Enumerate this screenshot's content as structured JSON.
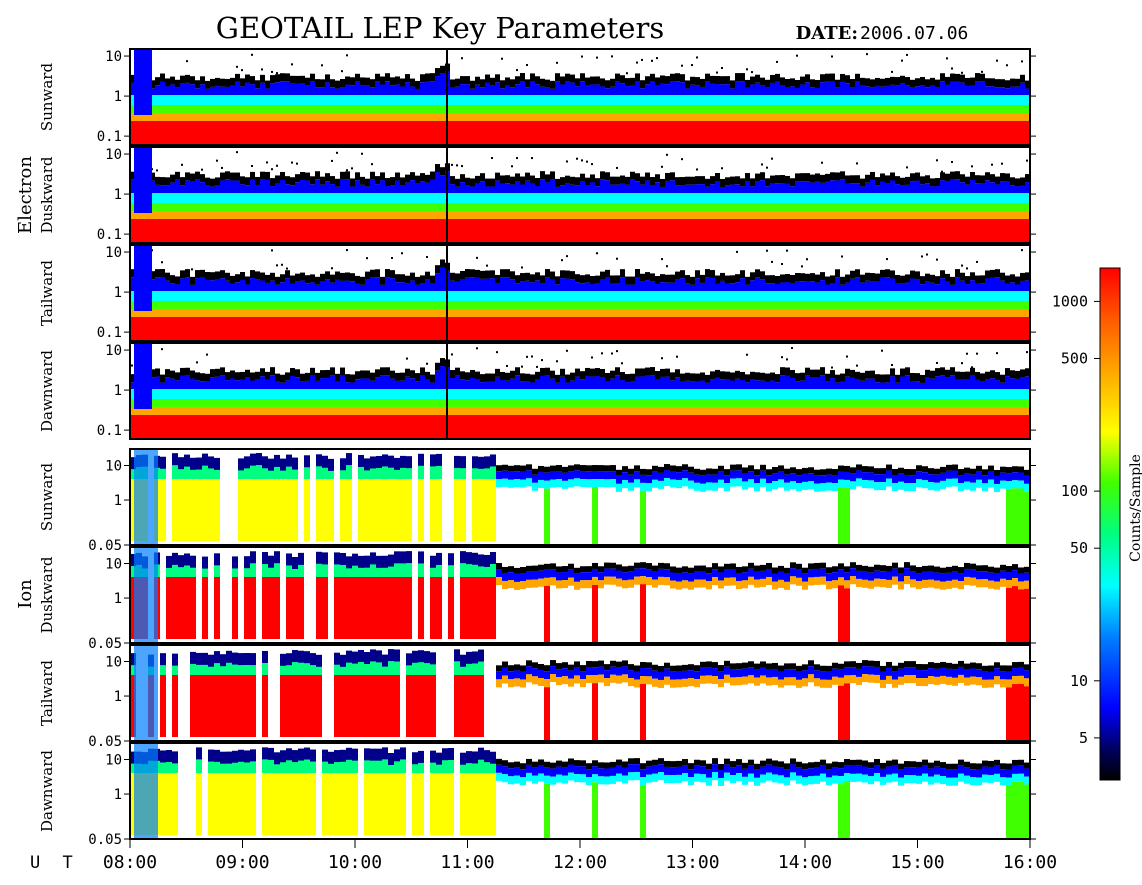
{
  "chart_data": {
    "type": "heatmap",
    "title": "GEOTAIL LEP Key Parameters",
    "date_label": "DATE:",
    "date_value": "2006.07.06",
    "x_axis": {
      "prefix": "U T",
      "range": [
        "08:00",
        "16:00"
      ],
      "tick_labels": [
        "08:00",
        "09:00",
        "10:00",
        "11:00",
        "12:00",
        "13:00",
        "14:00",
        "15:00",
        "16:00"
      ]
    },
    "colorbar": {
      "label": "Counts/Sample",
      "scale": "log",
      "range": [
        3,
        1500
      ],
      "tick_values": [
        5,
        10,
        50,
        100,
        500,
        1000
      ],
      "tick_labels": [
        "5",
        "10",
        "50",
        "100",
        "500",
        "1000"
      ],
      "colors": [
        "#000000",
        "#00008b",
        "#0000ff",
        "#0080ff",
        "#00ffff",
        "#00ff80",
        "#40ff00",
        "#ffff00",
        "#ffa500",
        "#ff5a00",
        "#ff0000"
      ]
    },
    "groups": [
      {
        "species": "Electron",
        "y_scale": "log",
        "y_range": [
          0.06,
          15
        ],
        "y_tick_labels": [
          "0.1",
          "1",
          "10"
        ],
        "panels": [
          "Sunward",
          "Duskward",
          "Tailward",
          "Dawnward"
        ]
      },
      {
        "species": "Ion",
        "y_scale": "log",
        "y_range": [
          0.05,
          30
        ],
        "y_tick_labels": [
          "0.05",
          "1",
          "10"
        ],
        "panels": [
          "Sunward",
          "Duskward",
          "Tailward",
          "Dawnward"
        ]
      }
    ]
  }
}
